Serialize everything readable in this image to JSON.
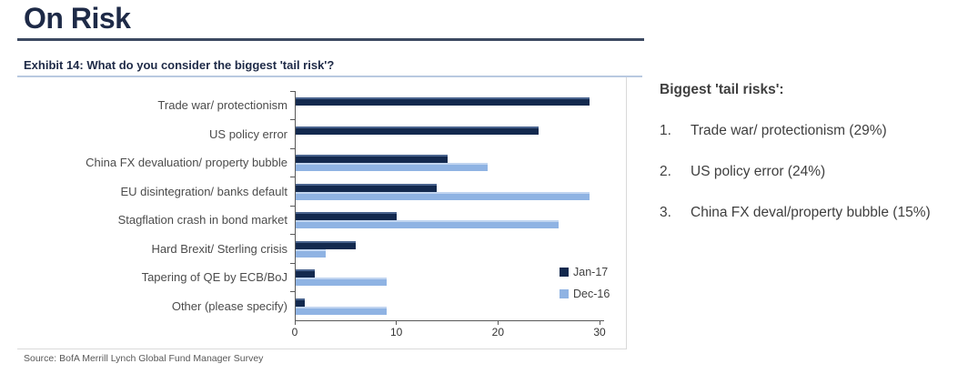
{
  "page_title": "On Risk",
  "exhibit_title": "Exhibit 14: What do you consider the biggest 'tail risk'?",
  "source": "Source: BofA Merrill Lynch Global Fund Manager Survey",
  "colors": {
    "jan17": "#13294e",
    "dec16": "#8fb3e3",
    "navy_text": "#1e2a47",
    "rule_dark": "#3c4961",
    "rule_light": "#b9c9e0",
    "axis_gray": "#595959",
    "border_gray": "#d9d9d9"
  },
  "chart_data": {
    "type": "bar",
    "orientation": "horizontal",
    "title": "Exhibit 14: What do you consider the biggest 'tail risk'?",
    "categories": [
      "Trade war/ protectionism",
      "US policy error",
      "China FX devaluation/ property bubble",
      "EU disintegration/ banks default",
      "Stagflation crash in bond market",
      "Hard Brexit/ Sterling crisis",
      "Tapering of QE by ECB/BoJ",
      "Other (please specify)"
    ],
    "series": [
      {
        "name": "Jan-17",
        "color": "#13294e",
        "values": [
          29,
          24,
          15,
          14,
          10,
          6,
          2,
          1
        ]
      },
      {
        "name": "Dec-16",
        "color": "#8fb3e3",
        "values": [
          null,
          null,
          19,
          29,
          26,
          3,
          9,
          9
        ]
      }
    ],
    "xlabel": "",
    "ylabel": "",
    "xlim": [
      0,
      30
    ],
    "x_ticks": [
      0,
      10,
      20,
      30
    ],
    "grid": false,
    "legend_position": "bottom-right"
  },
  "summary": {
    "heading": "Biggest 'tail risks':",
    "items": [
      "Trade war/ protectionism (29%)",
      "US policy error (24%)",
      "China FX deval/property bubble (15%)"
    ]
  }
}
